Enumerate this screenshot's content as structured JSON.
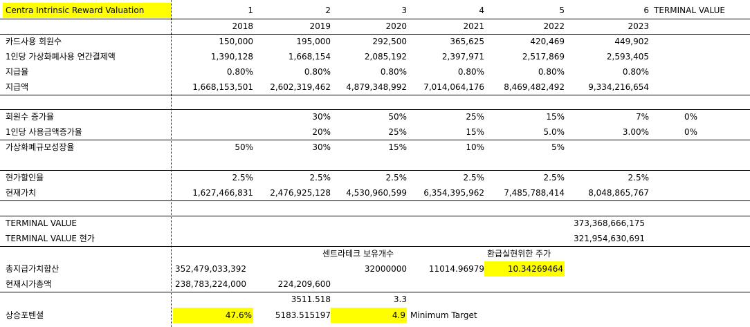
{
  "title": "Centra Intrinsic Reward Valuation",
  "periods": [
    "1",
    "2",
    "3",
    "4",
    "5",
    "6"
  ],
  "terminal_header": "TERMINAL VALUE",
  "years": [
    "2018",
    "2019",
    "2020",
    "2021",
    "2022",
    "2023"
  ],
  "rows": {
    "card_users": {
      "label": "카드사용 회원수",
      "values": [
        "150,000",
        "195,000",
        "292,500",
        "365,625",
        "420,469",
        "449,902"
      ]
    },
    "per_user": {
      "label": "1인당 가상화폐사용 연간결제액",
      "values": [
        "1,390,128",
        "1,668,154",
        "2,085,192",
        "2,397,971",
        "2,517,869",
        "2,593,405"
      ]
    },
    "pay_rate": {
      "label": "지급율",
      "values": [
        "0.80%",
        "0.80%",
        "0.80%",
        "0.80%",
        "0.80%",
        "0.80%"
      ]
    },
    "pay_amount": {
      "label": "지급액",
      "values": [
        "1,668,153,501",
        "2,602,319,462",
        "4,879,348,992",
        "7,014,064,176",
        "8,469,482,492",
        "9,334,216,654"
      ]
    },
    "member_growth": {
      "label": "회원수 증가율",
      "values": [
        "",
        "30%",
        "50%",
        "25%",
        "15%",
        "7%"
      ],
      "terminal": "0%"
    },
    "usage_growth": {
      "label": "1인당 사용금액증가율",
      "values": [
        "",
        "20%",
        "25%",
        "15%",
        "5.0%",
        "3.00%"
      ],
      "terminal": "0%"
    },
    "crypto_growth": {
      "label": "가상화폐규모성장율",
      "values": [
        "50%",
        "30%",
        "15%",
        "10%",
        "5%",
        ""
      ]
    },
    "discount_rate": {
      "label": "현가할인율",
      "values": [
        "2.5%",
        "2.5%",
        "2.5%",
        "2.5%",
        "2.5%",
        "2.5%"
      ]
    },
    "present_value": {
      "label": "현재가치",
      "values": [
        "1,627,466,831",
        "2,476,925,128",
        "4,530,960,599",
        "6,354,395,962",
        "7,485,788,414",
        "8,048,865,767"
      ]
    }
  },
  "terminal": {
    "tv_label": "TERMINAL VALUE",
    "tv_value": "373,368,666,175",
    "tvpv_label": "TERMINAL VALUE 현가",
    "tvpv_value": "321,954,630,691"
  },
  "summary": {
    "holdings_label": "센트라테크 보유개수",
    "price_label": "환급실현위한 주가",
    "total_label": "총지급가치합산",
    "total_value": "352,479,033,392",
    "holdings_value": "32000000",
    "per_token": "11014.96979",
    "target_price": "10.34269464",
    "mcap_label": "현재시가총액",
    "mcap_value": "238,783,224,000",
    "mcap_value2": "224,209,600",
    "extra1": "3511.518",
    "extra2": "3.3",
    "upside_label": "상승포텐셜",
    "upside_value": "47.6%",
    "upside_value2": "5183.515197",
    "upside_value3": "4.9",
    "min_target_label": "Minimum Target"
  }
}
